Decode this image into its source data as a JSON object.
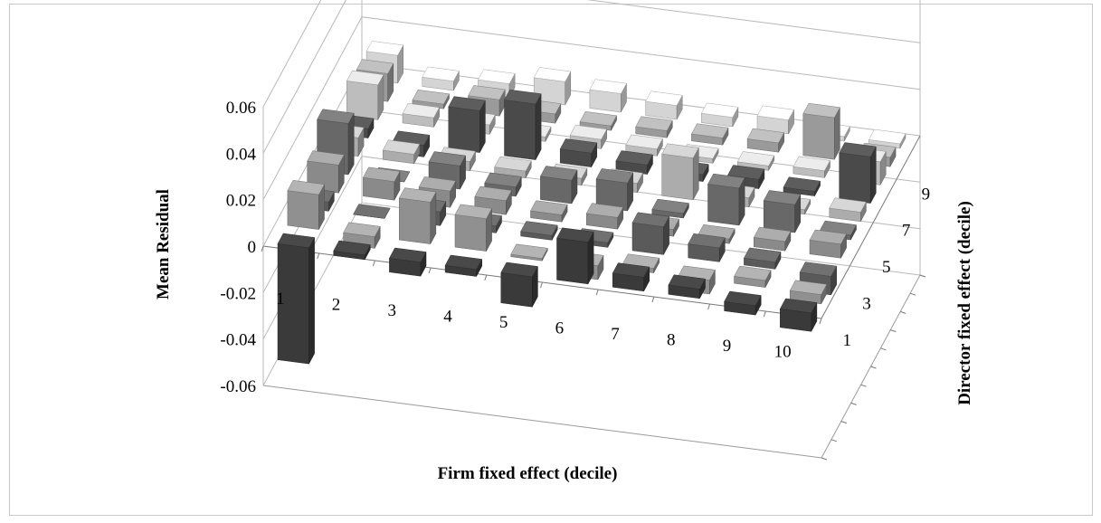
{
  "chart_data": {
    "type": "bar3d",
    "title": "",
    "xlabel": "Firm fixed effect (decile)",
    "ylabel": "Mean Residual",
    "zlabel": "Director fixed effect (decile)",
    "zlim": [
      -0.06,
      0.06
    ],
    "z_ticks": [
      "0.06",
      "0.04",
      "0.02",
      "0",
      "-0.02",
      "-0.04",
      "-0.06"
    ],
    "x_categories": [
      "1",
      "2",
      "3",
      "4",
      "5",
      "6",
      "7",
      "8",
      "9",
      "10"
    ],
    "y_categories": [
      "1",
      "2",
      "3",
      "4",
      "5",
      "6",
      "7",
      "8",
      "9",
      "10"
    ],
    "y_tick_labels": [
      "1",
      "3",
      "5",
      "7",
      "9"
    ],
    "grid": true,
    "legend": "none",
    "series_colors": [
      "#3a3a3a",
      "#909090",
      "#5a5a5a",
      "#8a8a8a",
      "#686868",
      "#acacac",
      "#4a4a4a",
      "#bdbdbd",
      "#9a9a9a",
      "#d4d4d4"
    ],
    "values": [
      [
        -0.05,
        0.015,
        0.004,
        0.012,
        0.022,
        0.008,
        0.004,
        0.015,
        0.012,
        0.012
      ],
      [
        -0.002,
        -0.005,
        0.0,
        0.008,
        0.0,
        0.004,
        -0.005,
        0.004,
        0.002,
        0.004
      ],
      [
        -0.006,
        0.018,
        0.006,
        0.007,
        0.01,
        0.004,
        0.018,
        0.004,
        0.007,
        0.006
      ],
      [
        -0.003,
        0.014,
        0.003,
        0.006,
        0.004,
        0.003,
        0.024,
        0.002,
        0.004,
        0.01
      ],
      [
        -0.013,
        -0.001,
        0.002,
        0.003,
        0.01,
        0.003,
        0.006,
        0.004,
        0.002,
        0.008
      ],
      [
        0.018,
        -0.006,
        0.002,
        0.005,
        0.012,
        0.004,
        0.004,
        0.003,
        0.003,
        0.006
      ],
      [
        0.006,
        0.002,
        0.012,
        0.003,
        0.002,
        0.018,
        0.003,
        0.002,
        0.003,
        0.004
      ],
      [
        0.004,
        -0.006,
        0.006,
        0.002,
        0.016,
        0.004,
        0.004,
        0.002,
        0.004,
        0.006
      ],
      [
        -0.004,
        0.003,
        0.003,
        0.004,
        0.012,
        0.002,
        0.002,
        0.003,
        0.018,
        0.002
      ],
      [
        -0.008,
        -0.004,
        -0.008,
        0.006,
        0.002,
        0.004,
        0.02,
        0.01,
        0.004,
        0.002
      ]
    ]
  }
}
